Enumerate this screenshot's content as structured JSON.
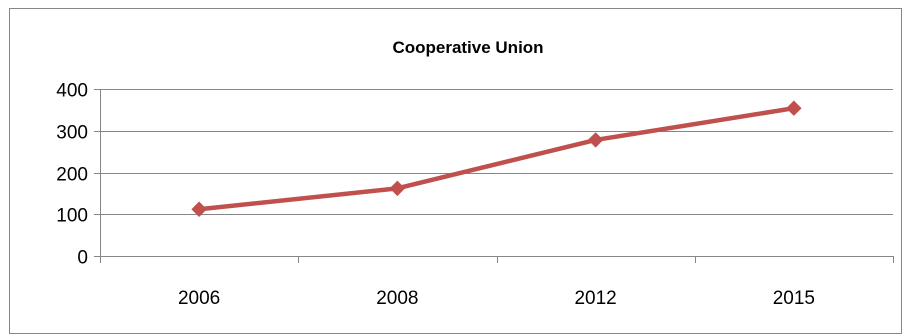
{
  "chart_data": {
    "type": "line",
    "title": "Cooperative Union",
    "xlabel": "",
    "ylabel": "",
    "categories": [
      "2006",
      "2008",
      "2012",
      "2015"
    ],
    "series": [
      {
        "values": [
          112,
          162,
          278,
          354
        ],
        "color": "#C0504D",
        "marker": "diamond"
      }
    ],
    "yticks": [
      "0",
      "100",
      "200",
      "300",
      "400"
    ],
    "ylim": [
      0,
      400
    ],
    "grid": "horizontal",
    "legend": "none",
    "colors": {
      "line": "#C0504D",
      "grid": "#868686",
      "axis": "#868686",
      "border": "#868686"
    }
  }
}
